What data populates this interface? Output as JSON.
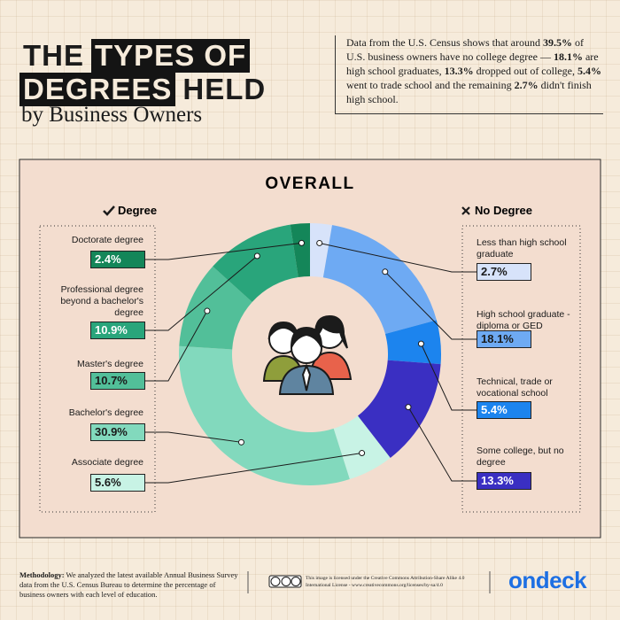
{
  "header": {
    "title_parts": [
      "THE",
      "TYPES OF",
      "DEGREES",
      "HELD"
    ],
    "title_highlight": [
      false,
      true,
      true,
      false
    ],
    "subtitle": "by Business Owners",
    "description": {
      "parts": [
        "Data from the U.S. Census shows that around ",
        "39.5%",
        " of U.S. business owners have no college degree — ",
        "18.1%",
        " are high school graduates, ",
        "13.3%",
        " dropped out of college, ",
        "5.4%",
        " went to trade school and the remaining ",
        "2.7%",
        " didn't finish high school."
      ],
      "bold": [
        false,
        true,
        false,
        true,
        false,
        true,
        false,
        true,
        false,
        true,
        false
      ]
    }
  },
  "chart_data": {
    "type": "donut",
    "title": "OVERALL",
    "groups": [
      "Degree",
      "No Degree"
    ],
    "categories": [
      "Less than high school graduate",
      "High school graduate - diploma or GED",
      "Technical, trade or vocational school",
      "Some college, but no degree",
      "Associate degree",
      "Bachelor's degree",
      "Master's degree",
      "Professional degree beyond a bachelor's degree",
      "Doctorate degree"
    ],
    "values": [
      2.7,
      18.1,
      5.4,
      13.3,
      5.6,
      30.9,
      10.7,
      10.9,
      2.4
    ],
    "value_labels": [
      "2.7%",
      "18.1%",
      "5.4%",
      "13.3%",
      "5.6%",
      "30.9%",
      "10.7%",
      "10.9%",
      "2.4%"
    ],
    "colors": [
      "#d7e3fa",
      "#6eaaf3",
      "#1c84ee",
      "#3a2fc2",
      "#c8f3e5",
      "#82d9bd",
      "#52bf99",
      "#29a57b",
      "#148659"
    ]
  },
  "footer": {
    "methodology_label": "Methodology:",
    "methodology": " We analyzed the latest available Annual Business Survey data from the U.S. Census Bureau to determine the percentage of business owners with each level of education.",
    "license": "This image is licensed under the Creative Commons Attribution-Share Alike 4.0 International License - www.creativecommons.org/licenses/by-sa/4.0",
    "logo": "ondeck"
  }
}
